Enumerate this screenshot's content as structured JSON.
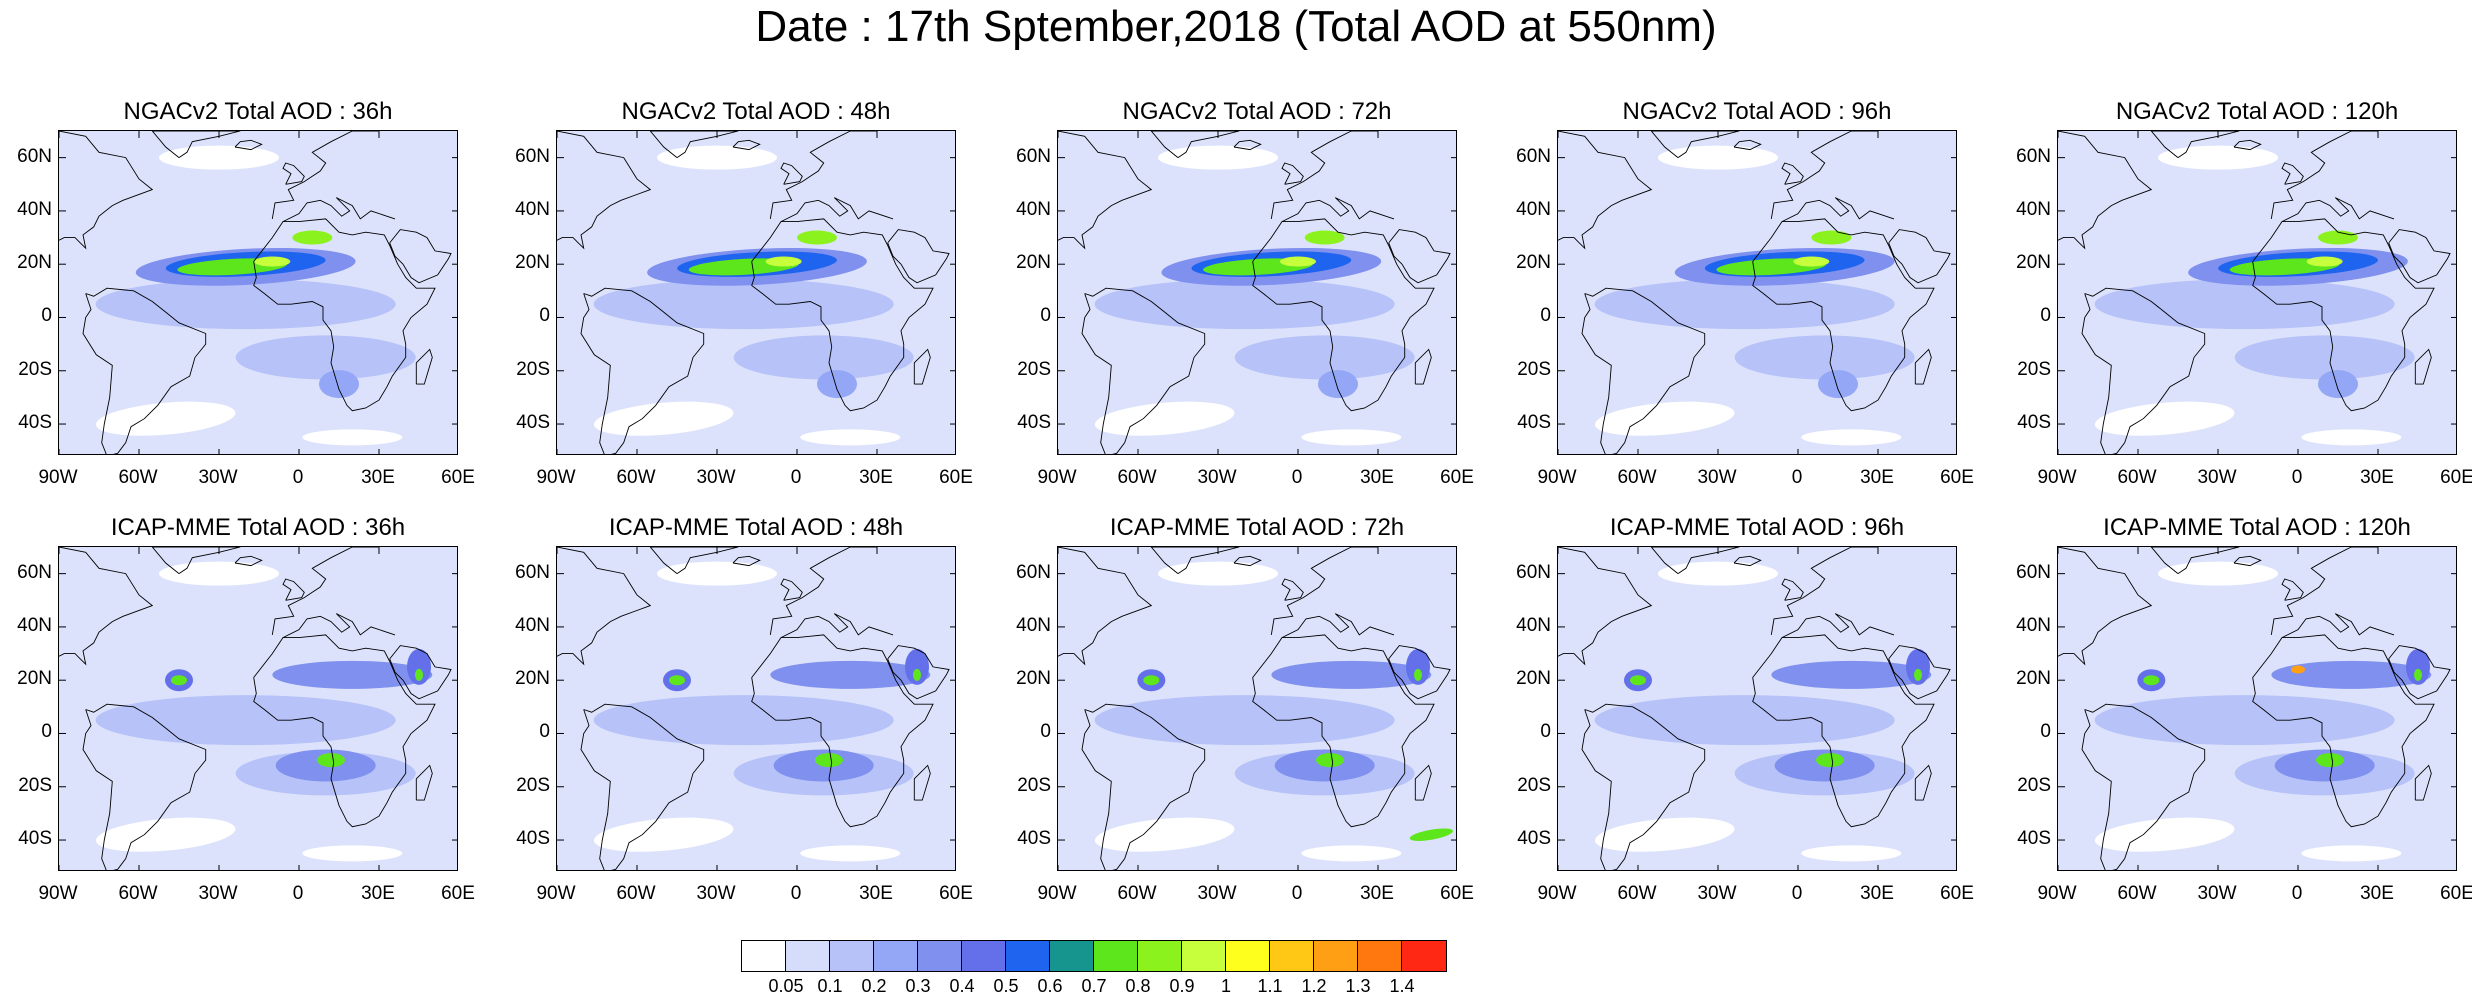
{
  "title": "Date : 17th Sptember,2018 (Total AOD at 550nm)",
  "panels": [
    {
      "title": "NGACv2 Total AOD : 36h",
      "model": "NGACv2",
      "lead": "36h"
    },
    {
      "title": "NGACv2 Total AOD : 48h",
      "model": "NGACv2",
      "lead": "48h"
    },
    {
      "title": "NGACv2 Total AOD : 72h",
      "model": "NGACv2",
      "lead": "72h"
    },
    {
      "title": "NGACv2 Total AOD : 96h",
      "model": "NGACv2",
      "lead": "96h"
    },
    {
      "title": "NGACv2 Total AOD : 120h",
      "model": "NGACv2",
      "lead": "120h"
    },
    {
      "title": "ICAP-MME Total AOD : 36h",
      "model": "ICAP-MME",
      "lead": "36h"
    },
    {
      "title": "ICAP-MME Total AOD : 48h",
      "model": "ICAP-MME",
      "lead": "48h"
    },
    {
      "title": "ICAP-MME Total AOD : 72h",
      "model": "ICAP-MME",
      "lead": "72h"
    },
    {
      "title": "ICAP-MME Total AOD : 96h",
      "model": "ICAP-MME",
      "lead": "96h"
    },
    {
      "title": "ICAP-MME Total AOD : 120h",
      "model": "ICAP-MME",
      "lead": "120h"
    }
  ],
  "lat_labels": [
    "60N",
    "40N",
    "20N",
    "0",
    "20S",
    "40S"
  ],
  "lon_labels": [
    "90W",
    "60W",
    "30W",
    "0",
    "30E",
    "60E"
  ],
  "map_extent": {
    "lon": [
      -90,
      60
    ],
    "lat": [
      -52,
      70
    ]
  },
  "colorbar": {
    "labels": [
      "0.05",
      "0.1",
      "0.2",
      "0.3",
      "0.4",
      "0.5",
      "0.6",
      "0.7",
      "0.8",
      "0.9",
      "1",
      "1.1",
      "1.2",
      "1.3",
      "1.4"
    ],
    "colors": [
      "#ffffff",
      "#d6ddfb",
      "#b6c2f8",
      "#94a7f6",
      "#7f90ef",
      "#6470ea",
      "#1e64ee",
      "#16958f",
      "#5ee61c",
      "#8cf21e",
      "#c8ff3c",
      "#ffff1e",
      "#ffc814",
      "#ffa014",
      "#ff780f",
      "#ff2814"
    ]
  },
  "colors": {
    "land_outline": "#000000",
    "background_field": "#dce2fb"
  }
}
